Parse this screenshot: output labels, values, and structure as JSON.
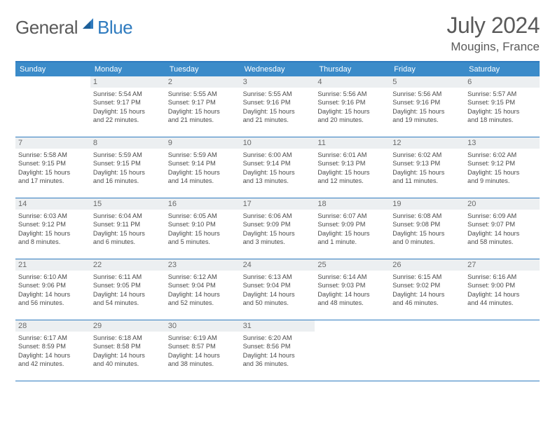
{
  "logo": {
    "text1": "General",
    "text2": "Blue",
    "shape_color": "#2f7bbf",
    "text_gray": "#5a5a5a"
  },
  "header": {
    "month": "July 2024",
    "location": "Mougins, France"
  },
  "colors": {
    "header_bar": "#3b8bc9",
    "border": "#2f7bbf",
    "daynum_bg": "#eceff1",
    "text_gray": "#5a5a5a",
    "body_text": "#4a4a4a"
  },
  "weekdays": [
    "Sunday",
    "Monday",
    "Tuesday",
    "Wednesday",
    "Thursday",
    "Friday",
    "Saturday"
  ],
  "weeks": [
    [
      {
        "n": "",
        "sr": "",
        "ss": "",
        "d1": "",
        "d2": ""
      },
      {
        "n": "1",
        "sr": "Sunrise: 5:54 AM",
        "ss": "Sunset: 9:17 PM",
        "d1": "Daylight: 15 hours",
        "d2": "and 22 minutes."
      },
      {
        "n": "2",
        "sr": "Sunrise: 5:55 AM",
        "ss": "Sunset: 9:17 PM",
        "d1": "Daylight: 15 hours",
        "d2": "and 21 minutes."
      },
      {
        "n": "3",
        "sr": "Sunrise: 5:55 AM",
        "ss": "Sunset: 9:16 PM",
        "d1": "Daylight: 15 hours",
        "d2": "and 21 minutes."
      },
      {
        "n": "4",
        "sr": "Sunrise: 5:56 AM",
        "ss": "Sunset: 9:16 PM",
        "d1": "Daylight: 15 hours",
        "d2": "and 20 minutes."
      },
      {
        "n": "5",
        "sr": "Sunrise: 5:56 AM",
        "ss": "Sunset: 9:16 PM",
        "d1": "Daylight: 15 hours",
        "d2": "and 19 minutes."
      },
      {
        "n": "6",
        "sr": "Sunrise: 5:57 AM",
        "ss": "Sunset: 9:15 PM",
        "d1": "Daylight: 15 hours",
        "d2": "and 18 minutes."
      }
    ],
    [
      {
        "n": "7",
        "sr": "Sunrise: 5:58 AM",
        "ss": "Sunset: 9:15 PM",
        "d1": "Daylight: 15 hours",
        "d2": "and 17 minutes."
      },
      {
        "n": "8",
        "sr": "Sunrise: 5:59 AM",
        "ss": "Sunset: 9:15 PM",
        "d1": "Daylight: 15 hours",
        "d2": "and 16 minutes."
      },
      {
        "n": "9",
        "sr": "Sunrise: 5:59 AM",
        "ss": "Sunset: 9:14 PM",
        "d1": "Daylight: 15 hours",
        "d2": "and 14 minutes."
      },
      {
        "n": "10",
        "sr": "Sunrise: 6:00 AM",
        "ss": "Sunset: 9:14 PM",
        "d1": "Daylight: 15 hours",
        "d2": "and 13 minutes."
      },
      {
        "n": "11",
        "sr": "Sunrise: 6:01 AM",
        "ss": "Sunset: 9:13 PM",
        "d1": "Daylight: 15 hours",
        "d2": "and 12 minutes."
      },
      {
        "n": "12",
        "sr": "Sunrise: 6:02 AM",
        "ss": "Sunset: 9:13 PM",
        "d1": "Daylight: 15 hours",
        "d2": "and 11 minutes."
      },
      {
        "n": "13",
        "sr": "Sunrise: 6:02 AM",
        "ss": "Sunset: 9:12 PM",
        "d1": "Daylight: 15 hours",
        "d2": "and 9 minutes."
      }
    ],
    [
      {
        "n": "14",
        "sr": "Sunrise: 6:03 AM",
        "ss": "Sunset: 9:12 PM",
        "d1": "Daylight: 15 hours",
        "d2": "and 8 minutes."
      },
      {
        "n": "15",
        "sr": "Sunrise: 6:04 AM",
        "ss": "Sunset: 9:11 PM",
        "d1": "Daylight: 15 hours",
        "d2": "and 6 minutes."
      },
      {
        "n": "16",
        "sr": "Sunrise: 6:05 AM",
        "ss": "Sunset: 9:10 PM",
        "d1": "Daylight: 15 hours",
        "d2": "and 5 minutes."
      },
      {
        "n": "17",
        "sr": "Sunrise: 6:06 AM",
        "ss": "Sunset: 9:09 PM",
        "d1": "Daylight: 15 hours",
        "d2": "and 3 minutes."
      },
      {
        "n": "18",
        "sr": "Sunrise: 6:07 AM",
        "ss": "Sunset: 9:09 PM",
        "d1": "Daylight: 15 hours",
        "d2": "and 1 minute."
      },
      {
        "n": "19",
        "sr": "Sunrise: 6:08 AM",
        "ss": "Sunset: 9:08 PM",
        "d1": "Daylight: 15 hours",
        "d2": "and 0 minutes."
      },
      {
        "n": "20",
        "sr": "Sunrise: 6:09 AM",
        "ss": "Sunset: 9:07 PM",
        "d1": "Daylight: 14 hours",
        "d2": "and 58 minutes."
      }
    ],
    [
      {
        "n": "21",
        "sr": "Sunrise: 6:10 AM",
        "ss": "Sunset: 9:06 PM",
        "d1": "Daylight: 14 hours",
        "d2": "and 56 minutes."
      },
      {
        "n": "22",
        "sr": "Sunrise: 6:11 AM",
        "ss": "Sunset: 9:05 PM",
        "d1": "Daylight: 14 hours",
        "d2": "and 54 minutes."
      },
      {
        "n": "23",
        "sr": "Sunrise: 6:12 AM",
        "ss": "Sunset: 9:04 PM",
        "d1": "Daylight: 14 hours",
        "d2": "and 52 minutes."
      },
      {
        "n": "24",
        "sr": "Sunrise: 6:13 AM",
        "ss": "Sunset: 9:04 PM",
        "d1": "Daylight: 14 hours",
        "d2": "and 50 minutes."
      },
      {
        "n": "25",
        "sr": "Sunrise: 6:14 AM",
        "ss": "Sunset: 9:03 PM",
        "d1": "Daylight: 14 hours",
        "d2": "and 48 minutes."
      },
      {
        "n": "26",
        "sr": "Sunrise: 6:15 AM",
        "ss": "Sunset: 9:02 PM",
        "d1": "Daylight: 14 hours",
        "d2": "and 46 minutes."
      },
      {
        "n": "27",
        "sr": "Sunrise: 6:16 AM",
        "ss": "Sunset: 9:00 PM",
        "d1": "Daylight: 14 hours",
        "d2": "and 44 minutes."
      }
    ],
    [
      {
        "n": "28",
        "sr": "Sunrise: 6:17 AM",
        "ss": "Sunset: 8:59 PM",
        "d1": "Daylight: 14 hours",
        "d2": "and 42 minutes."
      },
      {
        "n": "29",
        "sr": "Sunrise: 6:18 AM",
        "ss": "Sunset: 8:58 PM",
        "d1": "Daylight: 14 hours",
        "d2": "and 40 minutes."
      },
      {
        "n": "30",
        "sr": "Sunrise: 6:19 AM",
        "ss": "Sunset: 8:57 PM",
        "d1": "Daylight: 14 hours",
        "d2": "and 38 minutes."
      },
      {
        "n": "31",
        "sr": "Sunrise: 6:20 AM",
        "ss": "Sunset: 8:56 PM",
        "d1": "Daylight: 14 hours",
        "d2": "and 36 minutes."
      },
      {
        "n": "",
        "sr": "",
        "ss": "",
        "d1": "",
        "d2": ""
      },
      {
        "n": "",
        "sr": "",
        "ss": "",
        "d1": "",
        "d2": ""
      },
      {
        "n": "",
        "sr": "",
        "ss": "",
        "d1": "",
        "d2": ""
      }
    ]
  ]
}
